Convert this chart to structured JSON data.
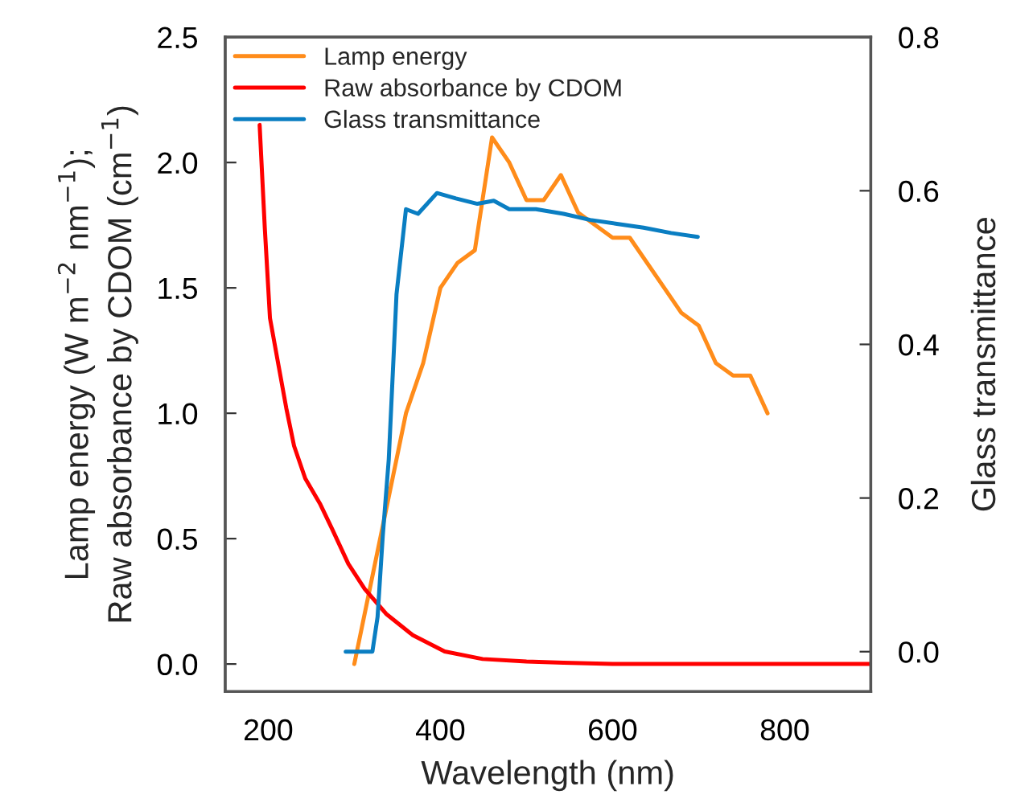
{
  "chart_data": {
    "type": "line",
    "xlabel": "Wavelength (nm)",
    "ylabel": "Lamp energy (W m$^{−2}$ nm$^{−1}$);\nRaw absorbance by CDOM (cm$^{−1}$)",
    "y2label": "Glass transmittance",
    "xlim": [
      150,
      900
    ],
    "xticks": [
      200,
      400,
      600,
      800
    ],
    "ylim": [
      -0.11,
      2.5
    ],
    "yticks": [
      {
        "value": 0,
        "label": "0.0"
      },
      0.5,
      {
        "value": 1,
        "label": "1.0"
      },
      1.5,
      {
        "value": 2,
        "label": "2.0"
      },
      2.5
    ],
    "y2lim": [
      -0.052,
      0.8
    ],
    "y2ticks": [
      {
        "value": 0,
        "label": "0.0"
      },
      0.2,
      0.4,
      0.6,
      0.8
    ],
    "legend": "top left",
    "grid": false,
    "marker": "none",
    "line_style": "solid",
    "series": [
      {
        "name": "Lamp energy",
        "color": "#ff8c1a",
        "x": [
          300,
          360,
          380,
          400,
          420,
          440,
          460,
          480,
          500,
          520,
          540,
          560,
          600,
          620,
          660,
          680,
          700,
          720,
          740,
          760,
          780
        ],
        "values": [
          0.0,
          1.0,
          1.2,
          1.5,
          1.6,
          1.65,
          2.1,
          2.0,
          1.85,
          1.85,
          1.95,
          1.8,
          1.7,
          1.7,
          1.5,
          1.4,
          1.35,
          1.2,
          1.15,
          1.15,
          1.0
        ]
      },
      {
        "name": "Raw absorbance by CDOM",
        "color": "#ff0000",
        "x": [
          190,
          196,
          202,
          212,
          221,
          230,
          243,
          260,
          274,
          293,
          312,
          337,
          368,
          405,
          449,
          500,
          543,
          600,
          700,
          800,
          900
        ],
        "values": [
          2.15,
          1.74,
          1.38,
          1.19,
          1.02,
          0.87,
          0.74,
          0.64,
          0.54,
          0.4,
          0.3,
          0.2,
          0.115,
          0.05,
          0.02,
          0.01,
          0.005,
          0.0,
          0.0,
          0.0,
          0.0
        ]
      },
      {
        "name": "Glass transmittance",
        "color": "#0a7ec2",
        "axis": "y2",
        "x": [
          290,
          321,
          327,
          333,
          340,
          349,
          360,
          374,
          396,
          418,
          443,
          462,
          480,
          511,
          543,
          574,
          605,
          636,
          668,
          699
        ],
        "values": [
          0.0,
          0.0,
          0.045,
          0.15,
          0.25,
          0.465,
          0.576,
          0.57,
          0.597,
          0.59,
          0.583,
          0.587,
          0.576,
          0.576,
          0.57,
          0.562,
          0.557,
          0.552,
          0.545,
          0.54
        ]
      }
    ]
  }
}
